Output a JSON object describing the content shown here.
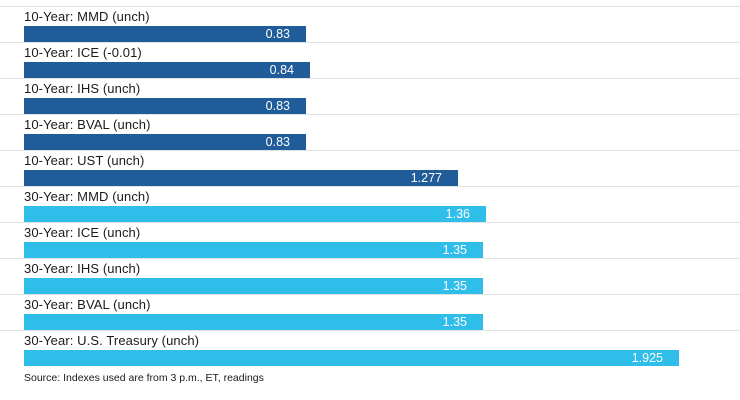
{
  "chart_data": {
    "type": "bar",
    "orientation": "horizontal",
    "title": "",
    "xlabel": "",
    "ylabel": "",
    "xlim": [
      0,
      2.0
    ],
    "grid": false,
    "legend": "none",
    "categories": [
      "10-Year: MMD (unch)",
      "10-Year: ICE (-0.01)",
      "10-Year: IHS (unch)",
      "10-Year: BVAL (unch)",
      "10-Year: UST (unch)",
      "30-Year: MMD (unch)",
      "30-Year: ICE (unch)",
      "30-Year: IHS (unch)",
      "30-Year: BVAL (unch)",
      "30-Year: U.S. Treasury (unch)"
    ],
    "values": [
      0.83,
      0.84,
      0.83,
      0.83,
      1.277,
      1.36,
      1.35,
      1.35,
      1.35,
      1.925
    ],
    "value_labels": [
      "0.83",
      "0.84",
      "0.83",
      "0.83",
      "1.277",
      "1.36",
      "1.35",
      "1.35",
      "1.35",
      "1.925"
    ],
    "colors": {
      "ten_year": "#1f5c99",
      "thirty_year": "#2fbde9"
    },
    "source": "Source: Indexes used are from 3 p.m., ET, readings"
  },
  "rows": [
    {
      "label": "10-Year: MMD (unch)",
      "value": 0.83,
      "display": "0.83",
      "color": "#1f5c99"
    },
    {
      "label": "10-Year: ICE (-0.01)",
      "value": 0.84,
      "display": "0.84",
      "color": "#1f5c99"
    },
    {
      "label": "10-Year: IHS (unch)",
      "value": 0.83,
      "display": "0.83",
      "color": "#1f5c99"
    },
    {
      "label": "10-Year: BVAL (unch)",
      "value": 0.83,
      "display": "0.83",
      "color": "#1f5c99"
    },
    {
      "label": "10-Year: UST (unch)",
      "value": 1.277,
      "display": "1.277",
      "color": "#1f5c99"
    },
    {
      "label": "30-Year: MMD (unch)",
      "value": 1.36,
      "display": "1.36",
      "color": "#2fbde9"
    },
    {
      "label": "30-Year: ICE (unch)",
      "value": 1.35,
      "display": "1.35",
      "color": "#2fbde9"
    },
    {
      "label": "30-Year: IHS (unch)",
      "value": 1.35,
      "display": "1.35",
      "color": "#2fbde9"
    },
    {
      "label": "30-Year: BVAL (unch)",
      "value": 1.35,
      "display": "1.35",
      "color": "#2fbde9"
    },
    {
      "label": "30-Year: U.S. Treasury (unch)",
      "value": 1.925,
      "display": "1.925",
      "color": "#2fbde9"
    }
  ],
  "footer": {
    "source": "Source: Indexes used are from 3 p.m., ET, readings"
  }
}
